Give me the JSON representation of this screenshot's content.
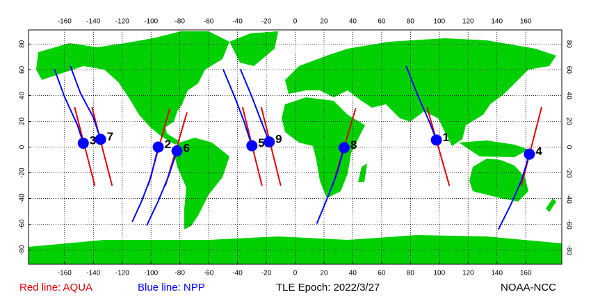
{
  "chart_data": {
    "type": "map",
    "xlim": [
      -185,
      185
    ],
    "ylim": [
      -91,
      91
    ],
    "xticks": [
      -160,
      -140,
      -120,
      -100,
      -80,
      -60,
      -40,
      -20,
      0,
      20,
      40,
      60,
      80,
      100,
      120,
      140,
      160
    ],
    "yticks": [
      -80,
      -60,
      -40,
      -20,
      0,
      20,
      40,
      60,
      80
    ],
    "grid": true,
    "legend": [
      {
        "label": "Red line: AQUA",
        "color": "#e00000"
      },
      {
        "label": "Blue line: NPP",
        "color": "#0000ff"
      }
    ],
    "epoch": "TLE Epoch: 2022/3/27",
    "source": "NOAA-NCC",
    "tracks": [
      {
        "color": "#e00000",
        "lon": [
          -153,
          -139
        ],
        "lat": [
          31,
          -30
        ]
      },
      {
        "color": "#e00000",
        "lon": [
          -141,
          -127
        ],
        "lat": [
          31,
          -30
        ]
      },
      {
        "color": "#e00000",
        "lon": [
          -87,
          -102
        ],
        "lat": [
          30,
          -30
        ]
      },
      {
        "color": "#e00000",
        "lon": [
          -75,
          -90
        ],
        "lat": [
          27,
          -30
        ]
      },
      {
        "color": "#e00000",
        "lon": [
          -36.5,
          -23
        ],
        "lat": [
          31,
          -30
        ]
      },
      {
        "color": "#e00000",
        "lon": [
          -23.5,
          -10
        ],
        "lat": [
          31,
          -30
        ]
      },
      {
        "color": "#e00000",
        "lon": [
          42,
          26
        ],
        "lat": [
          30,
          -30
        ]
      },
      {
        "color": "#e00000",
        "lon": [
          91.5,
          107
        ],
        "lat": [
          31,
          -30
        ]
      },
      {
        "color": "#e00000",
        "lon": [
          171,
          157
        ],
        "lat": [
          31,
          -30
        ]
      },
      {
        "color": "#0000ff",
        "lon": [
          -167,
          -160,
          -151,
          -147
        ],
        "lat": [
          60.5,
          39,
          17,
          3
        ]
      },
      {
        "color": "#0000ff",
        "lon": [
          -156,
          -149,
          -140,
          -135
        ],
        "lat": [
          63,
          42,
          23,
          6
        ]
      },
      {
        "color": "#0000ff",
        "lon": [
          -113,
          -106.5,
          -100,
          -95
        ],
        "lat": [
          -58,
          -42,
          -23,
          0
        ]
      },
      {
        "color": "#0000ff",
        "lon": [
          -103,
          -95,
          -88,
          -82
        ],
        "lat": [
          -61,
          -42,
          -23,
          -3
        ]
      },
      {
        "color": "#0000ff",
        "lon": [
          -50,
          -42,
          -35.5,
          -30
        ],
        "lat": [
          60.5,
          39,
          20,
          1
        ]
      },
      {
        "color": "#0000ff",
        "lon": [
          -38,
          -30,
          -23.5,
          -18
        ],
        "lat": [
          60.5,
          39,
          20,
          4
        ]
      },
      {
        "color": "#0000ff",
        "lon": [
          15,
          21.5,
          29,
          34
        ],
        "lat": [
          -59.5,
          -42,
          -20.5,
          -0.5
        ]
      },
      {
        "color": "#0000ff",
        "lon": [
          77,
          85.5,
          93,
          98
        ],
        "lat": [
          63,
          39,
          20,
          5.5
        ]
      },
      {
        "color": "#0000ff",
        "lon": [
          141,
          149.5,
          157,
          162.5
        ],
        "lat": [
          -64,
          -45,
          -26,
          -5.5
        ]
      }
    ],
    "points": {
      "color": "#0000ff",
      "labels": [
        "1",
        "2",
        "3",
        "4",
        "5",
        "6",
        "7",
        "8",
        "9"
      ],
      "lon": [
        98,
        -95,
        -147,
        162.5,
        -30,
        -82,
        -135,
        34,
        -18
      ],
      "lat": [
        5.5,
        0,
        3,
        -5.5,
        1,
        -3,
        6,
        -0.5,
        4
      ]
    }
  }
}
